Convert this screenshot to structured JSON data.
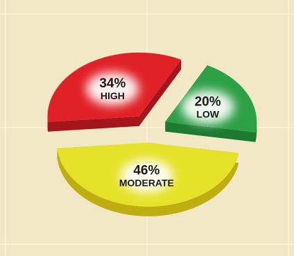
{
  "chart_data": {
    "type": "pie",
    "style": "3d-exploded",
    "categories": [
      "HIGH",
      "LOW",
      "MODERATE"
    ],
    "values": [
      34,
      20,
      46
    ],
    "labels": [
      "34%",
      "20%",
      "46%"
    ],
    "colors": [
      "#e02127",
      "#2ea045",
      "#e6e22a"
    ],
    "side_colors": [
      "#a3161b",
      "#1c7a31",
      "#bfae12"
    ],
    "background": "#f3e8c6",
    "grid": true,
    "legend": "none",
    "title": ""
  }
}
